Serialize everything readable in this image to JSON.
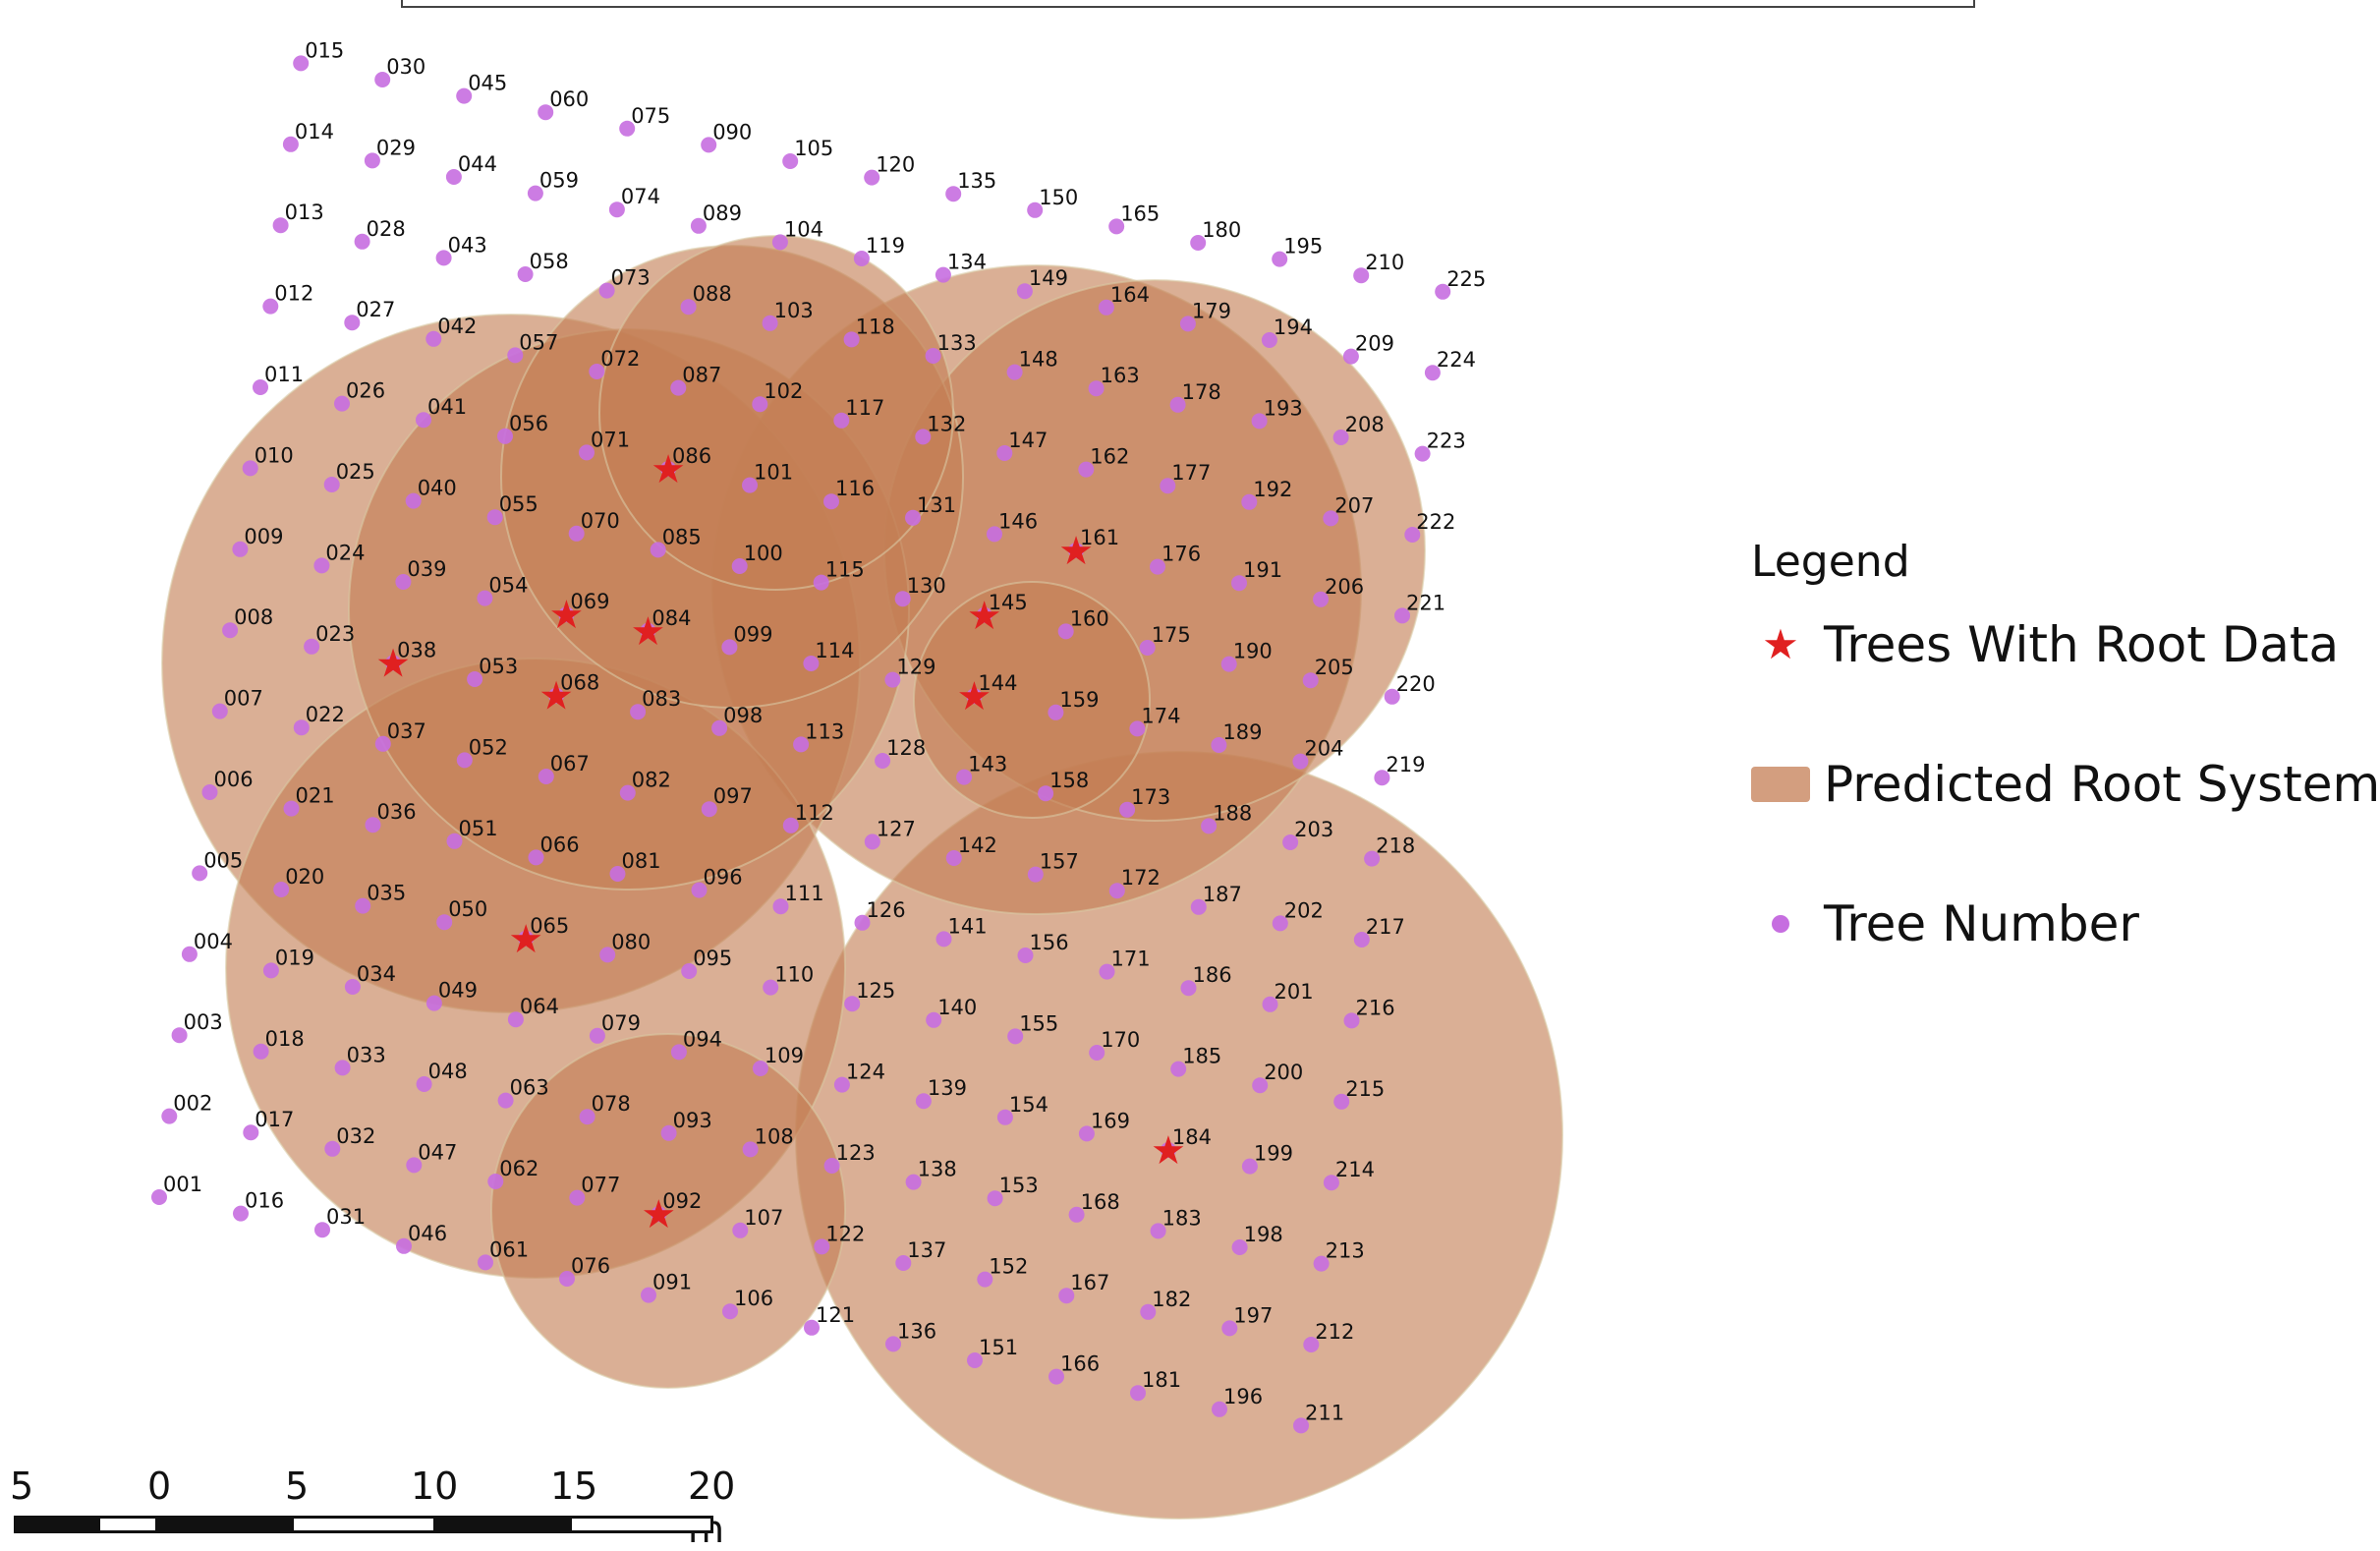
{
  "legend": {
    "title": "Legend",
    "items": [
      {
        "label": "Trees With Root Data",
        "icon": "star-icon",
        "color": "#e02020"
      },
      {
        "label": "Predicted Root System",
        "icon": "root-area-swatch",
        "color": "#c47e54"
      },
      {
        "label": "Tree Number",
        "icon": "dot-icon",
        "color": "#c66ee0"
      }
    ]
  },
  "scale_bar": {
    "labels": [
      "5",
      "0",
      "5",
      "10",
      "15",
      "20 m"
    ],
    "segments": [
      "black",
      "white",
      "black",
      "white",
      "black",
      "white"
    ]
  },
  "colors": {
    "root_fill": "#c47e54",
    "tree_dot": "#c66ee0",
    "root_tree_star": "#e02020"
  },
  "grid": {
    "rows": 15,
    "columns": 15,
    "labels": [
      "001",
      "002",
      "003",
      "004",
      "005",
      "006",
      "007",
      "008",
      "009",
      "010",
      "011",
      "012",
      "013",
      "014",
      "015",
      "016",
      "017",
      "018",
      "019",
      "020",
      "021",
      "022",
      "023",
      "024",
      "025",
      "026",
      "027",
      "028",
      "029",
      "030",
      "031",
      "032",
      "033",
      "034",
      "035",
      "036",
      "037",
      "038",
      "039",
      "040",
      "041",
      "042",
      "043",
      "044",
      "045",
      "046",
      "047",
      "048",
      "049",
      "050",
      "051",
      "052",
      "053",
      "054",
      "055",
      "056",
      "057",
      "058",
      "059",
      "060",
      "061",
      "062",
      "063",
      "064",
      "065",
      "066",
      "067",
      "068",
      "069",
      "070",
      "071",
      "072",
      "073",
      "074",
      "075",
      "076",
      "077",
      "078",
      "079",
      "080",
      "081",
      "082",
      "083",
      "084",
      "085",
      "086",
      "087",
      "088",
      "089",
      "090",
      "091",
      "092",
      "093",
      "094",
      "095",
      "096",
      "097",
      "098",
      "099",
      "100",
      "101",
      "102",
      "103",
      "104",
      "105",
      "106",
      "107",
      "108",
      "109",
      "110",
      "111",
      "112",
      "113",
      "114",
      "115",
      "116",
      "117",
      "118",
      "119",
      "120",
      "121",
      "122",
      "123",
      "124",
      "125",
      "126",
      "127",
      "128",
      "129",
      "130",
      "131",
      "132",
      "133",
      "134",
      "135",
      "136",
      "137",
      "138",
      "139",
      "140",
      "141",
      "142",
      "143",
      "144",
      "145",
      "146",
      "147",
      "148",
      "149",
      "150",
      "151",
      "152",
      "153",
      "154",
      "155",
      "156",
      "157",
      "158",
      "159",
      "160",
      "161",
      "162",
      "163",
      "164",
      "165",
      "166",
      "167",
      "168",
      "169",
      "170",
      "171",
      "172",
      "173",
      "174",
      "175",
      "176",
      "177",
      "178",
      "179",
      "180",
      "181",
      "182",
      "183",
      "184",
      "185",
      "186",
      "187",
      "188",
      "189",
      "190",
      "191",
      "192",
      "193",
      "194",
      "195",
      "196",
      "197",
      "198",
      "199",
      "200",
      "201",
      "202",
      "203",
      "204",
      "205",
      "206",
      "207",
      "208",
      "209",
      "210",
      "211",
      "212",
      "213",
      "214",
      "215",
      "216",
      "217",
      "218",
      "219",
      "220",
      "221",
      "222",
      "223",
      "224",
      "225"
    ],
    "trees_with_root_data": [
      "038",
      "065",
      "068",
      "069",
      "084",
      "086",
      "092",
      "144",
      "145",
      "161",
      "184"
    ]
  }
}
